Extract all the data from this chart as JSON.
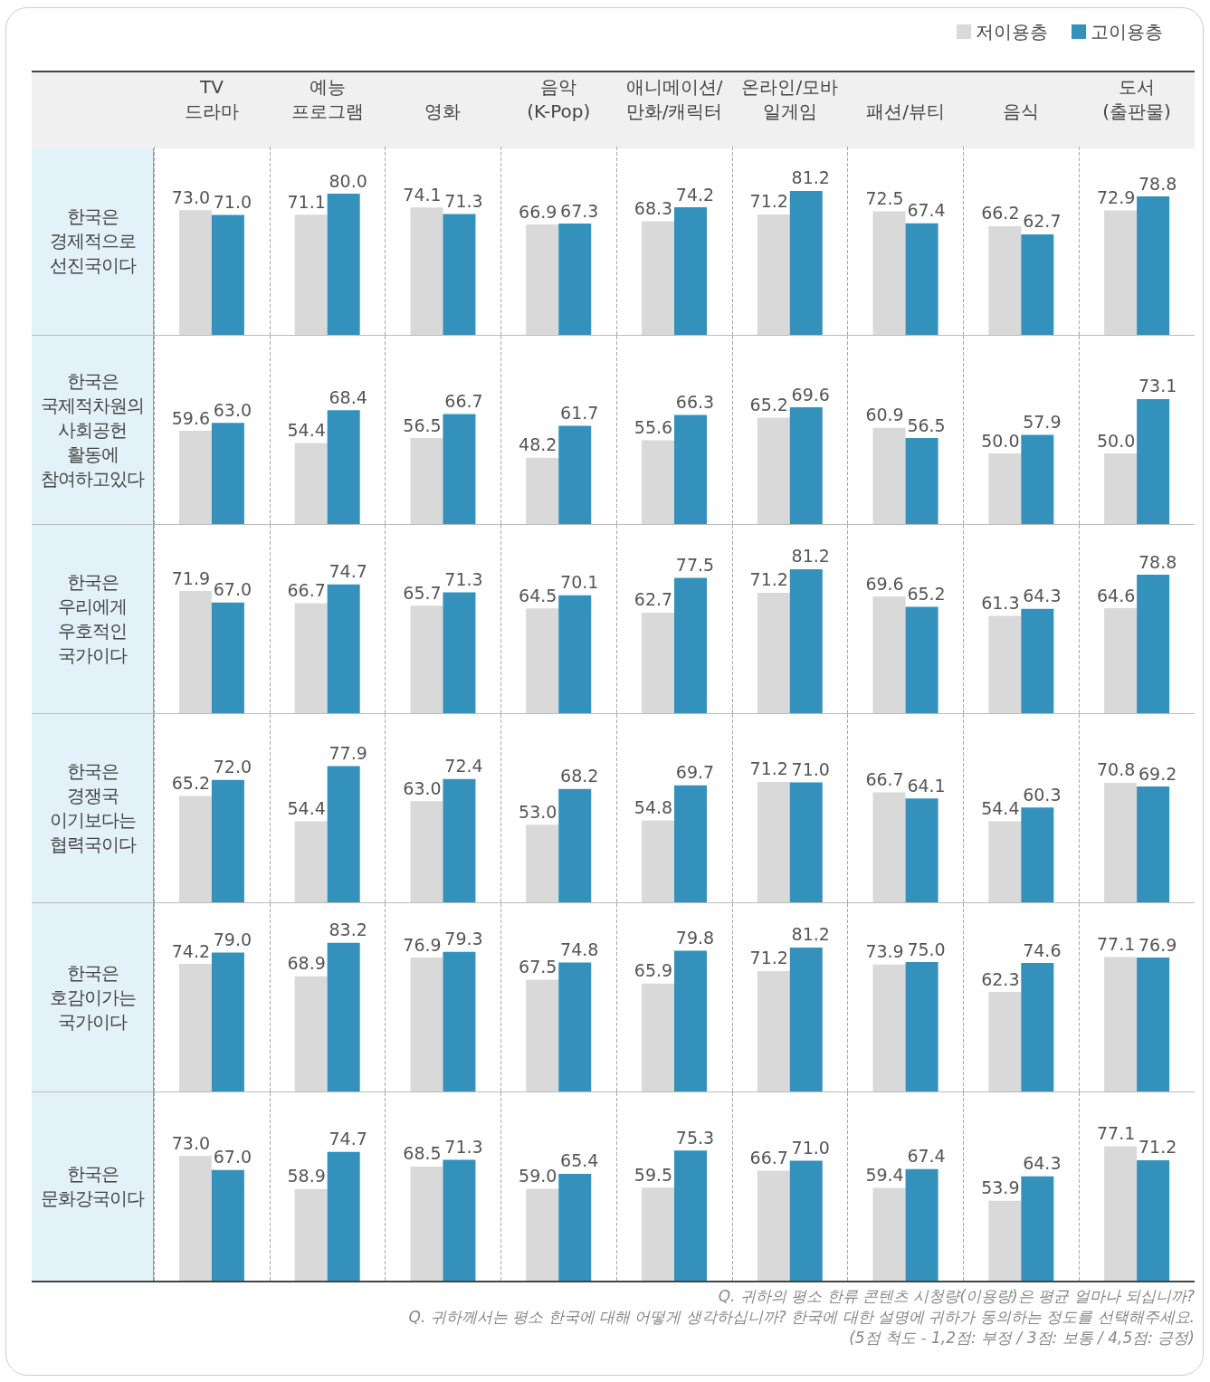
{
  "chart_data": [
    {
      "type": "bar",
      "title": "한국은 경제적으로 선진국이다",
      "categories": [
        "TV 드라마",
        "예능 프로그램",
        "영화",
        "음악 (K-Pop)",
        "애니메이션/만화/캐릭터",
        "온라인/모바일게임",
        "패션/뷰티",
        "음식",
        "도서 (출판물)"
      ],
      "series": [
        {
          "name": "저이용층",
          "color": "#d9d9d9",
          "values": [
            73.0,
            71.1,
            74.1,
            66.9,
            68.3,
            71.2,
            72.5,
            66.2,
            72.9
          ],
          "value_labels": [
            "73.0",
            "71.1",
            "74.1",
            "66.9",
            "68.3",
            "71.2",
            "72.5",
            "66.2",
            "72.9"
          ]
        },
        {
          "name": "고이용층",
          "color": "#3391bb",
          "values": [
            71.0,
            80.0,
            71.3,
            67.3,
            74.2,
            81.2,
            67.4,
            62.7,
            78.8
          ],
          "value_labels": [
            "71.0",
            "80.0",
            "71.3",
            "67.3",
            "74.2",
            "81.2",
            "67.4",
            "62.7",
            "78.8"
          ]
        }
      ],
      "ylim": [
        20,
        100
      ],
      "grid": "x",
      "legend": "top right",
      "tick_labels": "x"
    },
    {
      "type": "bar",
      "title": "한국은 국제적차원의 사회공헌 활동에 참여하고있다",
      "categories": [
        "TV 드라마",
        "예능 프로그램",
        "영화",
        "음악 (K-Pop)",
        "애니메이션/만화/캐릭터",
        "온라인/모바일게임",
        "패션/뷰티",
        "음식",
        "도서 (출판물)"
      ],
      "series": [
        {
          "color": "#d9d9d9",
          "values": [
            59.6,
            54.4,
            56.5,
            48.2,
            55.6,
            65.2,
            60.9,
            50.0,
            50.0
          ],
          "value_labels": [
            "59.6",
            "54.4",
            "56.5",
            "48.2",
            "55.6",
            "65.2",
            "60.9",
            "50.0",
            "50.0"
          ]
        },
        {
          "color": "#3391bb",
          "values": [
            63.0,
            68.4,
            66.7,
            61.7,
            66.3,
            69.6,
            56.5,
            57.9,
            73.1
          ],
          "value_labels": [
            "63.0",
            "68.4",
            "66.7",
            "61.7",
            "66.3",
            "69.6",
            "56.5",
            "57.9",
            "73.1"
          ]
        }
      ],
      "ylim": [
        20,
        100
      ],
      "grid": "x",
      "tick_labels": false
    },
    {
      "type": "bar",
      "title": "한국은 우리에게 우호적인 국가이다",
      "categories": [
        "TV 드라마",
        "예능 프로그램",
        "영화",
        "음악 (K-Pop)",
        "애니메이션/만화/캐릭터",
        "온라인/모바일게임",
        "패션/뷰티",
        "음식",
        "도서 (출판물)"
      ],
      "series": [
        {
          "color": "#d9d9d9",
          "values": [
            71.9,
            66.7,
            65.7,
            64.5,
            62.7,
            71.2,
            69.6,
            61.3,
            64.6
          ],
          "value_labels": [
            "71.9",
            "66.7",
            "65.7",
            "64.5",
            "62.7",
            "71.2",
            "69.6",
            "61.3",
            "64.6"
          ]
        },
        {
          "color": "#3391bb",
          "values": [
            67.0,
            74.7,
            71.3,
            70.1,
            77.5,
            81.2,
            65.2,
            64.3,
            78.8
          ],
          "value_labels": [
            "67.0",
            "74.7",
            "71.3",
            "70.1",
            "77.5",
            "81.2",
            "65.2",
            "64.3",
            "78.8"
          ]
        }
      ],
      "ylim": [
        20,
        100
      ],
      "grid": "x",
      "tick_labels": false
    },
    {
      "type": "bar",
      "title": "한국은 경쟁국 이기보다는 협력국이다",
      "categories": [
        "TV 드라마",
        "예능 프로그램",
        "영화",
        "음악 (K-Pop)",
        "애니메이션/만화/캐릭터",
        "온라인/모바일게임",
        "패션/뷰티",
        "음식",
        "도서 (출판물)"
      ],
      "series": [
        {
          "color": "#d9d9d9",
          "values": [
            65.2,
            54.4,
            63.0,
            53.0,
            54.8,
            71.2,
            66.7,
            54.4,
            70.8
          ],
          "value_labels": [
            "65.2",
            "54.4",
            "63.0",
            "53.0",
            "54.8",
            "71.2",
            "66.7",
            "54.4",
            "70.8"
          ]
        },
        {
          "color": "#3391bb",
          "values": [
            72.0,
            77.9,
            72.4,
            68.2,
            69.7,
            71.0,
            64.1,
            60.3,
            69.2
          ],
          "value_labels": [
            "72.0",
            "77.9",
            "72.4",
            "68.2",
            "69.7",
            "71.0",
            "64.1",
            "60.3",
            "69.2"
          ]
        }
      ],
      "ylim": [
        20,
        100
      ],
      "grid": "x",
      "tick_labels": false
    },
    {
      "type": "bar",
      "title": "한국은 호감이가는 국가이다",
      "categories": [
        "TV 드라마",
        "예능 프로그램",
        "영화",
        "음악 (K-Pop)",
        "애니메이션/만화/캐릭터",
        "온라인/모바일게임",
        "패션/뷰티",
        "음식",
        "도서 (출판물)"
      ],
      "series": [
        {
          "color": "#d9d9d9",
          "values": [
            74.2,
            68.9,
            76.9,
            67.5,
            65.9,
            71.2,
            73.9,
            62.3,
            77.1
          ],
          "value_labels": [
            "74.2",
            "68.9",
            "76.9",
            "67.5",
            "65.9",
            "71.2",
            "73.9",
            "62.3",
            "77.1"
          ]
        },
        {
          "color": "#3391bb",
          "values": [
            79.0,
            83.2,
            79.3,
            74.8,
            79.8,
            81.2,
            75.0,
            74.6,
            76.9
          ],
          "value_labels": [
            "79.0",
            "83.2",
            "79.3",
            "74.8",
            "79.8",
            "81.2",
            "75.0",
            "74.6",
            "76.9"
          ]
        }
      ],
      "ylim": [
        20,
        100
      ],
      "grid": "x",
      "tick_labels": false
    },
    {
      "type": "bar",
      "title": "한국은 문화강국이다",
      "categories": [
        "TV 드라마",
        "예능 프로그램",
        "영화",
        "음악 (K-Pop)",
        "애니메이션/만화/캐릭터",
        "온라인/모바일게임",
        "패션/뷰티",
        "음식",
        "도서 (출판물)"
      ],
      "series": [
        {
          "color": "#d9d9d9",
          "values": [
            73.0,
            58.9,
            68.5,
            59.0,
            59.5,
            66.7,
            59.4,
            53.9,
            77.1
          ],
          "value_labels": [
            "73.0",
            "58.9",
            "68.5",
            "59.0",
            "59.5",
            "66.7",
            "59.4",
            "53.9",
            "77.1"
          ]
        },
        {
          "color": "#3391bb",
          "values": [
            67.0,
            74.7,
            71.3,
            65.4,
            75.3,
            71.0,
            67.4,
            64.3,
            71.2
          ],
          "value_labels": [
            "67.0",
            "74.7",
            "71.3",
            "65.4",
            "75.3",
            "71.0",
            "67.4",
            "64.3",
            "71.2"
          ]
        }
      ],
      "ylim": [
        20,
        100
      ],
      "grid": "x",
      "tick_labels": false,
      "annotations": [
        "Q. 귀하의 평소 한류 콘텐츠 시청량(이용량)은 평균 얼마나 되십니까?",
        "Q. 귀하께서는 평소 한국에 대해 어떻게 생각하십니까? 한국에 대한 설명에 귀하가 동의하는 정도를 선택해주세요.",
        "(5점 척도 - 1,2점: 부정 / 3점: 보통 / 4,5점: 긍정)"
      ]
    }
  ]
}
